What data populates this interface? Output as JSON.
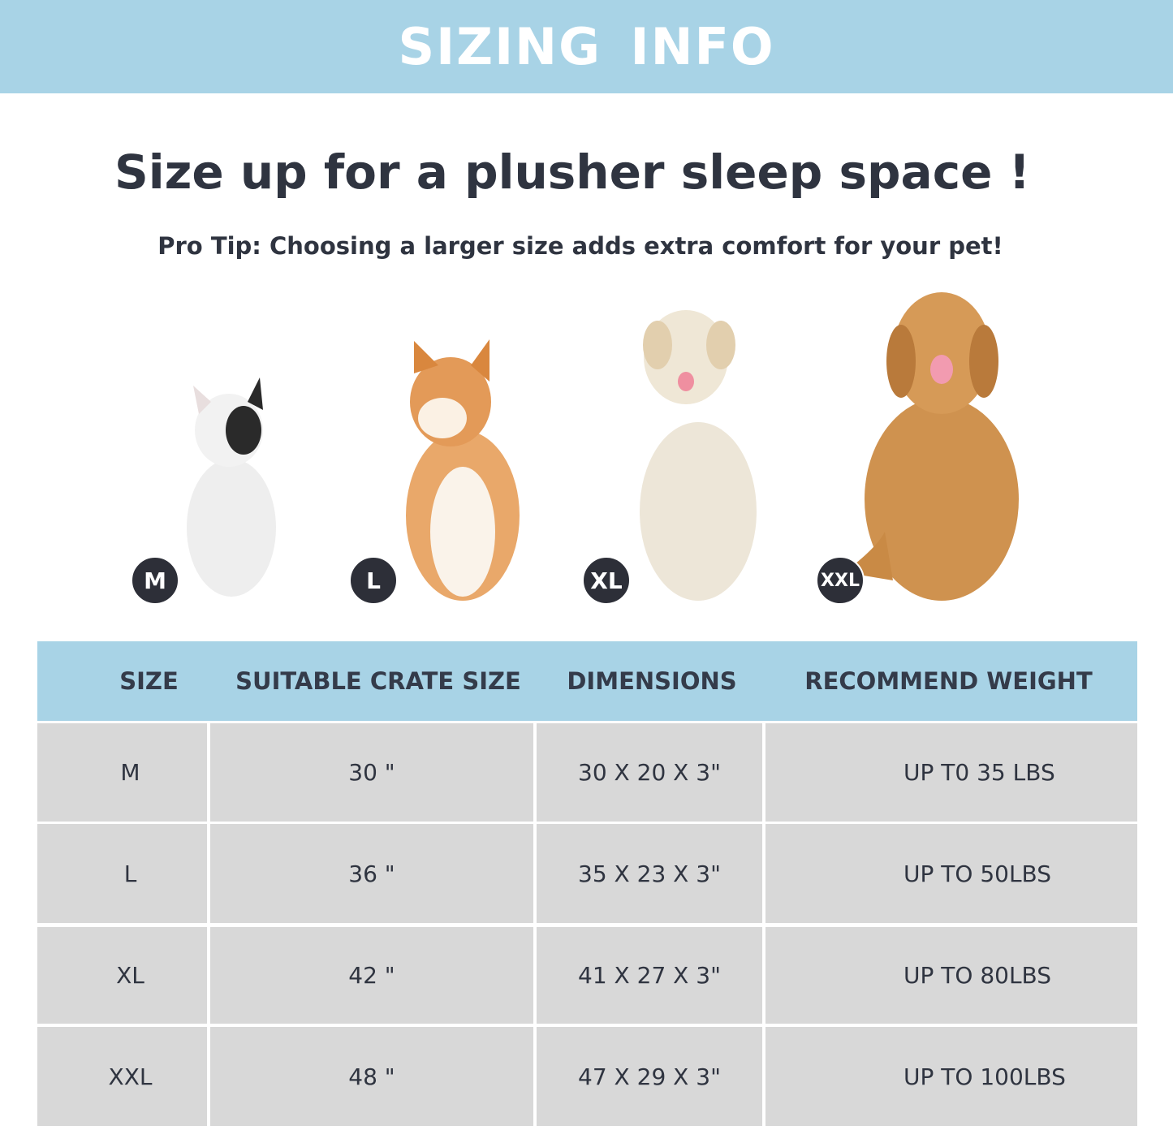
{
  "banner": {
    "title": "SIZING  INFO"
  },
  "headline": "Size up for a plusher sleep space !",
  "tip": "Pro Tip: Choosing a larger size adds extra comfort for your pet!",
  "colors": {
    "accent": "#a8d3e6",
    "text": "#333a47",
    "cell": "#d8d8d8",
    "badge": "#2d2f38"
  },
  "dogs": [
    {
      "badge": "M",
      "breed_image": "french-bulldog"
    },
    {
      "badge": "L",
      "breed_image": "shiba-inu"
    },
    {
      "badge": "XL",
      "breed_image": "labrador"
    },
    {
      "badge": "XXL",
      "breed_image": "golden-retriever"
    }
  ],
  "table": {
    "headers": [
      "SIZE",
      "SUITABLE CRATE SIZE",
      "DIMENSIONS",
      "RECOMMEND WEIGHT"
    ],
    "rows": [
      [
        "M",
        "30 \"",
        "30 X 20 X 3\"",
        "UP T0 35 LBS"
      ],
      [
        "L",
        "36 \"",
        "35 X 23 X 3\"",
        "UP TO 50LBS"
      ],
      [
        "XL",
        "42 \"",
        "41 X 27 X 3\"",
        "UP TO 80LBS"
      ],
      [
        "XXL",
        "48 \"",
        "47 X 29 X 3\"",
        "UP TO 100LBS"
      ]
    ]
  }
}
